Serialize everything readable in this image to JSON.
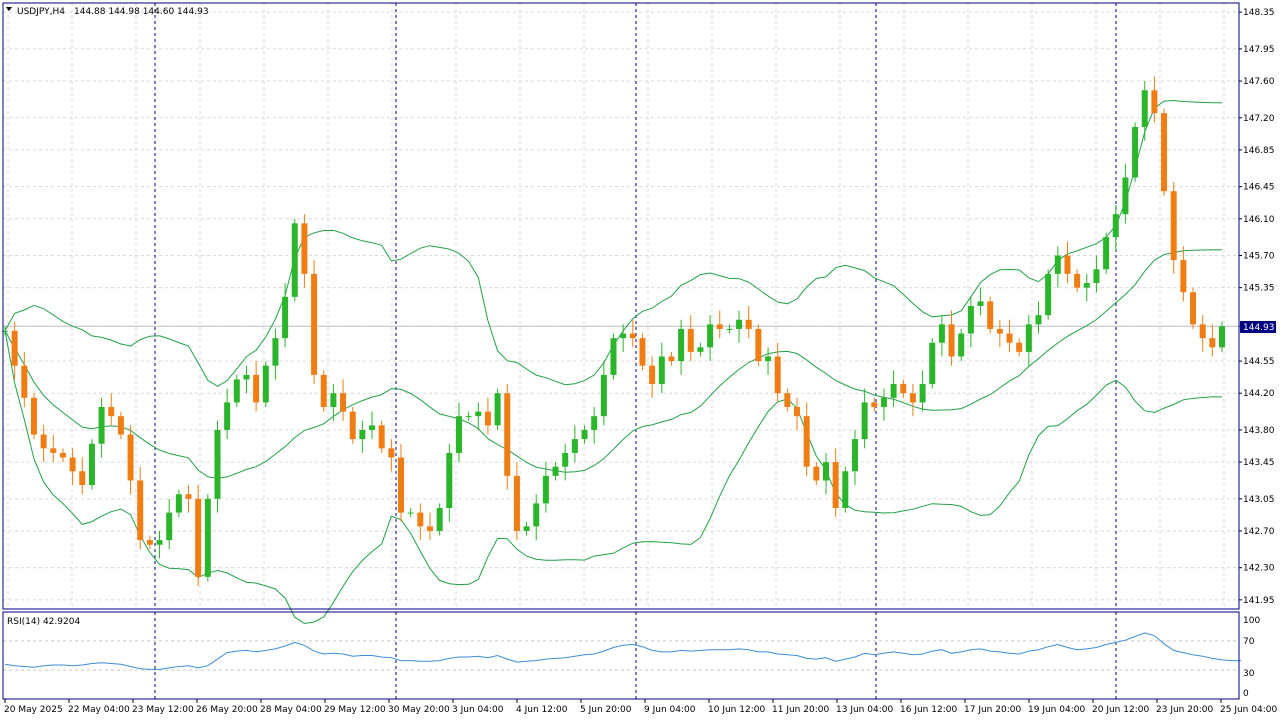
{
  "header": {
    "symbol_label": "USDJPY,H4",
    "ohlc_text": "144.88 144.98 144.60 144.93"
  },
  "current_price_label": "144.93",
  "rsi": {
    "label": "RSI(14) 42.9204",
    "levels": [
      "100",
      "70",
      "30",
      "0"
    ]
  },
  "colors": {
    "up_candle": "#2bb52b",
    "down_candle": "#f07d14",
    "bands": "#22a046",
    "rsi_line": "#3c8ed8",
    "frame": "#000080",
    "price_label_bg": "#000080"
  },
  "chart_data": [
    {
      "type": "candlestick",
      "title": "USDJPY,H4",
      "ylim": [
        141.85,
        148.45
      ],
      "grid": true,
      "price_ticks": [
        "148.35",
        "147.95",
        "147.60",
        "147.20",
        "146.85",
        "146.45",
        "146.10",
        "145.70",
        "145.35",
        "144.93",
        "144.55",
        "144.20",
        "143.80",
        "143.45",
        "143.05",
        "142.70",
        "142.30",
        "141.95"
      ],
      "x_labels": [
        "20 May 2025",
        "22 May 04:00",
        "23 May 12:00",
        "26 May 20:00",
        "28 May 04:00",
        "29 May 12:00",
        "30 May 20:00",
        "3 Jun 04:00",
        "4 Jun 12:00",
        "5 Jun 20:00",
        "9 Jun 04:00",
        "10 Jun 12:00",
        "11 Jun 20:00",
        "13 Jun 04:00",
        "16 Jun 12:00",
        "17 Jun 20:00",
        "19 Jun 04:00",
        "20 Jun 12:00",
        "23 Jun 20:00",
        "25 Jun 04:00"
      ],
      "close": [
        144.88,
        144.5,
        144.15,
        143.75,
        143.6,
        143.55,
        143.5,
        143.35,
        143.2,
        143.65,
        144.05,
        143.95,
        143.75,
        143.25,
        142.6,
        142.55,
        142.6,
        142.9,
        143.1,
        143.05,
        142.2,
        143.05,
        143.8,
        144.1,
        144.35,
        144.4,
        144.1,
        144.5,
        144.8,
        145.25,
        146.05,
        145.5,
        144.4,
        144.05,
        144.2,
        144.0,
        143.7,
        143.8,
        143.85,
        143.6,
        143.5,
        142.9,
        142.9,
        142.75,
        142.7,
        142.95,
        143.55,
        143.95,
        143.95,
        144.0,
        143.85,
        144.2,
        143.3,
        142.7,
        142.75,
        143.0,
        143.3,
        143.4,
        143.55,
        143.7,
        143.8,
        143.95,
        144.4,
        144.8,
        144.85,
        144.8,
        144.5,
        144.3,
        144.6,
        144.55,
        144.9,
        144.65,
        144.7,
        144.95,
        144.9,
        144.9,
        145.0,
        144.9,
        144.55,
        144.6,
        144.2,
        144.05,
        143.95,
        143.4,
        143.25,
        143.45,
        142.95,
        143.35,
        143.7,
        144.1,
        144.05,
        144.15,
        144.3,
        144.2,
        144.1,
        144.3,
        144.75,
        144.95,
        144.6,
        144.85,
        145.15,
        145.2,
        144.9,
        144.85,
        144.75,
        144.65,
        144.95,
        145.05,
        145.5,
        145.7,
        145.5,
        145.35,
        145.4,
        145.55,
        145.9,
        146.15,
        146.55,
        147.1,
        147.5,
        147.25,
        146.4,
        145.65,
        145.3,
        144.95,
        144.8,
        144.7,
        144.93
      ]
    },
    {
      "type": "line",
      "title": "RSI(14) 42.9204",
      "ylim": [
        0,
        100
      ],
      "levels": [
        70,
        30
      ],
      "values": [
        38,
        36,
        35,
        34,
        36,
        37,
        37,
        36,
        37,
        39,
        40,
        39,
        38,
        35,
        32,
        31,
        31,
        33,
        35,
        36,
        33,
        36,
        45,
        54,
        56,
        57,
        55,
        57,
        59,
        63,
        68,
        64,
        56,
        52,
        53,
        52,
        49,
        50,
        50,
        48,
        47,
        43,
        43,
        42,
        42,
        43,
        46,
        48,
        48,
        49,
        47,
        50,
        45,
        41,
        42,
        43,
        45,
        46,
        47,
        49,
        51,
        52,
        56,
        61,
        64,
        65,
        62,
        57,
        55,
        55,
        57,
        56,
        57,
        58,
        58,
        58,
        59,
        58,
        55,
        55,
        52,
        51,
        50,
        46,
        45,
        47,
        42,
        45,
        48,
        53,
        51,
        53,
        55,
        53,
        51,
        52,
        56,
        58,
        53,
        55,
        58,
        59,
        56,
        55,
        53,
        52,
        56,
        58,
        62,
        65,
        61,
        58,
        59,
        61,
        65,
        68,
        71,
        76,
        81,
        77,
        66,
        57,
        54,
        51,
        49,
        46,
        44,
        43,
        43
      ]
    }
  ]
}
